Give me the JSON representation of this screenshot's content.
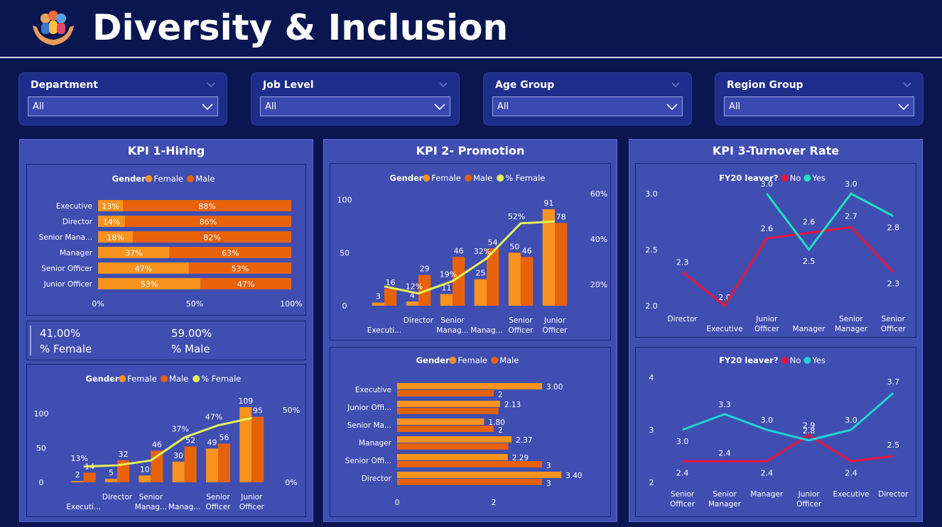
{
  "header": {
    "title": "Diversity & Inclusion"
  },
  "filters": [
    {
      "label": "Department",
      "value": "All"
    },
    {
      "label": "Job Level",
      "value": "All"
    },
    {
      "label": "Age Group",
      "value": "All"
    },
    {
      "label": "Region Group",
      "value": "All"
    }
  ],
  "kpi1": {
    "title": "KPI 1-Hiring",
    "stacked": {
      "legend_title": "Gender",
      "legend": [
        "Female",
        "Male"
      ],
      "categories": [
        "Executive",
        "Director",
        "Senior Mana...",
        "Manager",
        "Senior Officer",
        "Junior Officer"
      ],
      "female_pct": [
        13,
        14,
        18,
        37,
        47,
        53
      ],
      "male_pct": [
        88,
        86,
        82,
        63,
        53,
        47
      ],
      "xticks": [
        "0%",
        "50%",
        "100%"
      ]
    },
    "stats": {
      "female_value": "41.00%",
      "female_label": "% Female",
      "male_value": "59.00%",
      "male_label": "% Male"
    },
    "combo": {
      "legend_title": "Gender",
      "legend": [
        "Female",
        "Male",
        "% Female"
      ],
      "categories": [
        "Executi...",
        "Director",
        "Senior Manag...",
        "Manag...",
        "Senior Officer",
        "Junior Officer"
      ],
      "female": [
        2,
        5,
        10,
        30,
        49,
        109
      ],
      "male": [
        14,
        32,
        46,
        52,
        56,
        95
      ],
      "pct_female": [
        13,
        14,
        18,
        37,
        47,
        53
      ],
      "pct_labels": [
        "13%",
        "",
        "",
        "37%",
        "47%",
        ""
      ],
      "yticks_left": [
        "0",
        "50",
        "100"
      ],
      "yticks_right": [
        "0%",
        "50%"
      ]
    }
  },
  "kpi2": {
    "title": "KPI 2- Promotion",
    "combo": {
      "legend_title": "Gender",
      "legend": [
        "Female",
        "Male",
        "% Female"
      ],
      "categories": [
        "Executi...",
        "Director",
        "Senior Manag...",
        "Manag...",
        "Senior Officer",
        "Junior Officer"
      ],
      "female": [
        3,
        4,
        11,
        25,
        50,
        91
      ],
      "male": [
        16,
        29,
        46,
        54,
        46,
        78
      ],
      "pct_female": [
        16,
        12,
        19,
        32,
        52,
        53
      ],
      "pct_labels": [
        "",
        "12%",
        "19%",
        "32%",
        "52%",
        ""
      ],
      "yticks_left": [
        "0",
        "50",
        "100"
      ],
      "yticks_right": [
        "20%",
        "40%",
        "60%"
      ]
    },
    "hbar": {
      "legend_title": "Gender",
      "legend": [
        "Female",
        "Male"
      ],
      "categories": [
        "Executive",
        "Junior Offi...",
        "Senior Ma...",
        "Manager",
        "Senior Offi...",
        "Director"
      ],
      "female": [
        3.0,
        2.13,
        1.8,
        2.37,
        2.29,
        3.4
      ],
      "male": [
        2,
        2.1,
        2,
        2.3,
        3,
        3
      ],
      "female_labels": [
        "3.00",
        "2.13",
        "1.80",
        "2.37",
        "2.29",
        "3.40"
      ],
      "male_labels": [
        "2",
        "",
        "2",
        "",
        "3",
        "3"
      ],
      "xticks": [
        "0",
        "2"
      ]
    }
  },
  "kpi3": {
    "title": "KPI 3-Turnover Rate",
    "line1": {
      "legend_title": "FY20 leaver?",
      "legend": [
        "No",
        "Yes"
      ],
      "categories": [
        "Director",
        "Executive",
        "Junior Officer",
        "Manager",
        "Senior Manager",
        "Senior Officer"
      ],
      "no": [
        2.3,
        2.0,
        2.6,
        2.65,
        2.7,
        2.3
      ],
      "yes": [
        null,
        null,
        3.0,
        2.5,
        3.0,
        2.8
      ],
      "no_labels": [
        "2.3",
        "2.0",
        "2.6",
        "2.6",
        "2.7",
        "2.3"
      ],
      "yes_labels": [
        "",
        "",
        "3.0",
        "2.5",
        "3.0",
        "2.8"
      ],
      "yticks": [
        "2.0",
        "2.5",
        "3.0"
      ]
    },
    "line2": {
      "legend_title": "FY20 leaver?",
      "legend": [
        "No",
        "Yes"
      ],
      "categories": [
        "Senior Officer",
        "Senior Manager",
        "Manager",
        "Junior Officer",
        "Executive",
        "Director"
      ],
      "no": [
        2.4,
        2.4,
        2.4,
        2.9,
        2.4,
        2.5
      ],
      "yes": [
        3.0,
        3.3,
        3.0,
        2.8,
        3.0,
        3.7
      ],
      "no_labels": [
        "2.4",
        "2.4",
        "2.4",
        "2.9",
        "2.4",
        "2.5"
      ],
      "yes_labels": [
        "3.0",
        "3.3",
        "3.0",
        "2.8",
        "3.0",
        "3.7"
      ],
      "yticks": [
        "2",
        "3",
        "4"
      ]
    }
  },
  "colors": {
    "female": "#f7931e",
    "male": "#e8620c",
    "pct_line": "#e4f45a",
    "no": "#e8143c",
    "yes": "#1ee0c0",
    "yes2": "#22d3d3"
  }
}
